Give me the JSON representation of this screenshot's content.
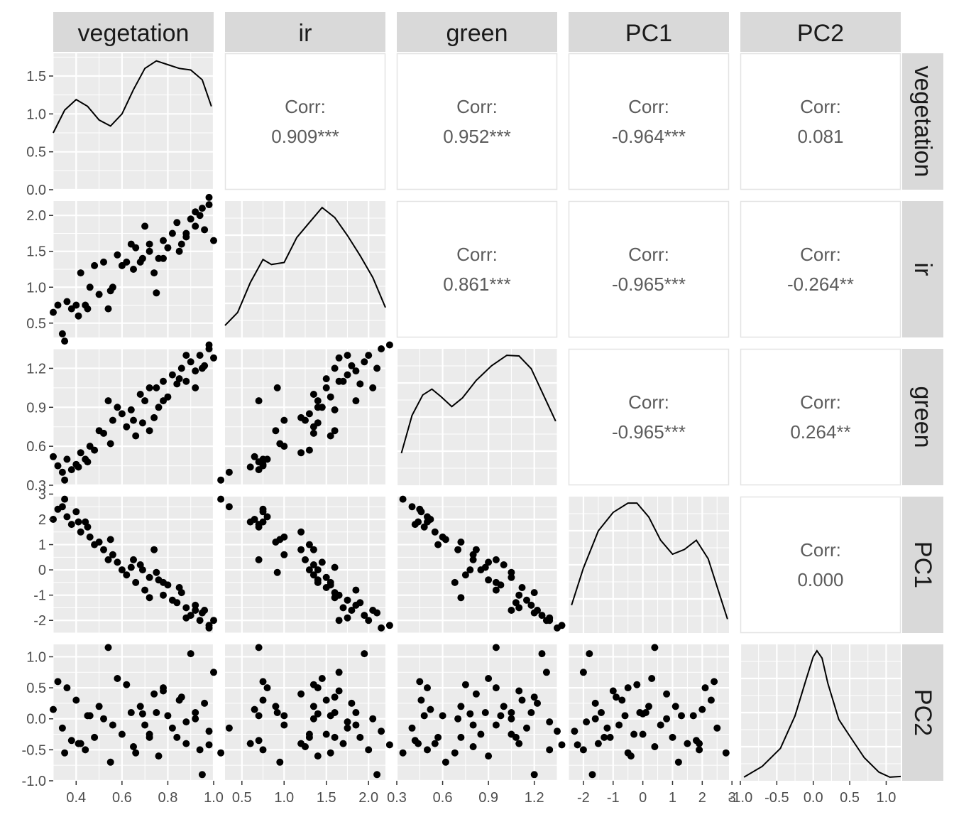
{
  "chart_data": {
    "type": "scatter",
    "variables": [
      "vegetation",
      "ir",
      "green",
      "PC1",
      "PC2"
    ],
    "axes": {
      "vegetation": {
        "lim": [
          0.3,
          1.0
        ],
        "ticks": [
          0.4,
          0.6,
          0.8,
          1.0
        ],
        "tick_labels": [
          "0.4",
          "0.6",
          "0.8",
          "1.0"
        ]
      },
      "ir": {
        "lim": [
          0.3,
          2.2
        ],
        "ticks": [
          0.5,
          1.0,
          1.5,
          2.0
        ],
        "tick_labels": [
          "0.5",
          "1.0",
          "1.5",
          "2.0"
        ]
      },
      "green": {
        "lim": [
          0.3,
          1.35
        ],
        "ticks": [
          0.3,
          0.6,
          0.9,
          1.2
        ],
        "tick_labels": [
          "0.3",
          "0.6",
          "0.9",
          "1.2"
        ]
      },
      "PC1": {
        "lim": [
          -2.5,
          2.9
        ],
        "ticks": [
          -2,
          -1,
          0,
          1,
          2,
          3
        ],
        "tick_labels": [
          "-2",
          "-1",
          "0",
          "1",
          "2",
          "3"
        ]
      },
      "PC2": {
        "lim": [
          -1.0,
          1.2
        ],
        "ticks": [
          -1.0,
          -0.5,
          0.0,
          0.5,
          1.0
        ],
        "tick_labels": [
          "-1.0",
          "-0.5",
          "0.0",
          "0.5",
          "1.0"
        ]
      }
    },
    "density_axis": {
      "lim": [
        0.0,
        1.8
      ],
      "ticks": [
        0.0,
        0.5,
        1.0,
        1.5
      ],
      "tick_labels": [
        "0.0",
        "0.5",
        "1.0",
        "1.5"
      ]
    },
    "densities": {
      "vegetation": [
        [
          0.3,
          0.75
        ],
        [
          0.35,
          1.05
        ],
        [
          0.4,
          1.19
        ],
        [
          0.45,
          1.1
        ],
        [
          0.5,
          0.92
        ],
        [
          0.55,
          0.84
        ],
        [
          0.6,
          1.0
        ],
        [
          0.65,
          1.32
        ],
        [
          0.7,
          1.6
        ],
        [
          0.75,
          1.7
        ],
        [
          0.8,
          1.65
        ],
        [
          0.85,
          1.6
        ],
        [
          0.9,
          1.58
        ],
        [
          0.95,
          1.45
        ],
        [
          0.99,
          1.1
        ]
      ],
      "ir": [
        [
          0.3,
          0.12
        ],
        [
          0.45,
          0.25
        ],
        [
          0.6,
          0.55
        ],
        [
          0.75,
          0.78
        ],
        [
          0.85,
          0.73
        ],
        [
          1.0,
          0.75
        ],
        [
          1.15,
          1.0
        ],
        [
          1.3,
          1.15
        ],
        [
          1.45,
          1.3
        ],
        [
          1.6,
          1.2
        ],
        [
          1.75,
          1.02
        ],
        [
          1.9,
          0.82
        ],
        [
          2.05,
          0.6
        ],
        [
          2.2,
          0.3
        ]
      ],
      "green": [
        [
          0.33,
          0.55
        ],
        [
          0.4,
          1.2
        ],
        [
          0.47,
          1.55
        ],
        [
          0.53,
          1.65
        ],
        [
          0.59,
          1.52
        ],
        [
          0.66,
          1.35
        ],
        [
          0.73,
          1.5
        ],
        [
          0.82,
          1.8
        ],
        [
          0.92,
          2.05
        ],
        [
          1.02,
          2.23
        ],
        [
          1.1,
          2.22
        ],
        [
          1.18,
          2.0
        ],
        [
          1.26,
          1.55
        ],
        [
          1.34,
          1.1
        ]
      ],
      "PC1": [
        [
          -2.4,
          0.06
        ],
        [
          -2.0,
          0.14
        ],
        [
          -1.5,
          0.22
        ],
        [
          -1.0,
          0.26
        ],
        [
          -0.5,
          0.28
        ],
        [
          -0.2,
          0.28
        ],
        [
          0.2,
          0.25
        ],
        [
          0.6,
          0.2
        ],
        [
          1.0,
          0.17
        ],
        [
          1.4,
          0.18
        ],
        [
          1.8,
          0.2
        ],
        [
          2.2,
          0.16
        ],
        [
          2.6,
          0.08
        ],
        [
          2.85,
          0.03
        ]
      ],
      "PC2": [
        [
          -0.95,
          0.05
        ],
        [
          -0.7,
          0.2
        ],
        [
          -0.45,
          0.45
        ],
        [
          -0.25,
          0.9
        ],
        [
          -0.1,
          1.4
        ],
        [
          0.0,
          1.72
        ],
        [
          0.05,
          1.8
        ],
        [
          0.12,
          1.7
        ],
        [
          0.2,
          1.35
        ],
        [
          0.35,
          0.85
        ],
        [
          0.5,
          0.62
        ],
        [
          0.7,
          0.32
        ],
        [
          0.9,
          0.12
        ],
        [
          1.05,
          0.05
        ],
        [
          1.2,
          0.06
        ]
      ]
    },
    "correlations": [
      {
        "row": "vegetation",
        "col": "ir",
        "label": "Corr:",
        "value": "0.909***"
      },
      {
        "row": "vegetation",
        "col": "green",
        "label": "Corr:",
        "value": "0.952***"
      },
      {
        "row": "vegetation",
        "col": "PC1",
        "label": "Corr:",
        "value": "-0.964***"
      },
      {
        "row": "vegetation",
        "col": "PC2",
        "label": "Corr:",
        "value": "0.081"
      },
      {
        "row": "ir",
        "col": "green",
        "label": "Corr:",
        "value": "0.861***"
      },
      {
        "row": "ir",
        "col": "PC1",
        "label": "Corr:",
        "value": "-0.965***"
      },
      {
        "row": "ir",
        "col": "PC2",
        "label": "Corr:",
        "value": "-0.264**"
      },
      {
        "row": "green",
        "col": "PC1",
        "label": "Corr:",
        "value": "-0.965***"
      },
      {
        "row": "green",
        "col": "PC2",
        "label": "Corr:",
        "value": "0.264**"
      },
      {
        "row": "PC1",
        "col": "PC2",
        "label": "Corr:",
        "value": "0.000"
      }
    ],
    "observations": {
      "vegetation": [
        0.3,
        0.32,
        0.34,
        0.36,
        0.38,
        0.4,
        0.42,
        0.44,
        0.46,
        0.48,
        0.5,
        0.52,
        0.54,
        0.56,
        0.58,
        0.6,
        0.62,
        0.64,
        0.66,
        0.68,
        0.7,
        0.72,
        0.74,
        0.76,
        0.78,
        0.8,
        0.82,
        0.84,
        0.86,
        0.88,
        0.9,
        0.92,
        0.94,
        0.96,
        0.98,
        1.0,
        0.35,
        0.45,
        0.55,
        0.65,
        0.75,
        0.85,
        0.95,
        0.72,
        0.78,
        0.88,
        0.92,
        0.98,
        0.41,
        0.69
      ],
      "ir": [
        0.65,
        0.75,
        0.35,
        0.8,
        0.7,
        0.75,
        1.2,
        0.75,
        1.0,
        1.3,
        0.9,
        1.35,
        0.7,
        1.0,
        1.45,
        1.3,
        1.35,
        1.6,
        1.55,
        1.35,
        1.85,
        1.5,
        1.2,
        1.4,
        1.65,
        1.55,
        1.75,
        1.9,
        1.6,
        1.7,
        1.95,
        1.85,
        2.0,
        1.8,
        2.15,
        1.65,
        0.25,
        0.7,
        0.95,
        1.25,
        0.92,
        1.5,
        2.1,
        1.6,
        1.4,
        1.75,
        2.05,
        2.25,
        0.6,
        1.4
      ],
      "green": [
        0.52,
        0.45,
        0.4,
        0.5,
        0.42,
        0.46,
        0.55,
        0.5,
        0.6,
        0.57,
        0.72,
        0.7,
        0.95,
        0.8,
        0.9,
        0.85,
        0.75,
        0.88,
        0.68,
        1.0,
        0.95,
        1.05,
        0.82,
        0.9,
        1.1,
        0.98,
        1.15,
        1.08,
        1.2,
        1.1,
        1.25,
        1.18,
        1.3,
        1.22,
        1.35,
        1.28,
        0.34,
        0.48,
        0.62,
        0.8,
        1.05,
        1.12,
        1.2,
        0.72,
        0.95,
        1.3,
        1.05,
        1.38,
        0.44,
        0.78
      ],
      "PC1": [
        2.0,
        2.4,
        2.5,
        2.1,
        1.8,
        2.3,
        1.5,
        1.9,
        1.3,
        1.0,
        1.1,
        0.8,
        0.4,
        0.6,
        0.3,
        0.0,
        -0.2,
        0.1,
        -0.5,
        0.2,
        -0.8,
        -0.3,
        0.8,
        -0.4,
        -1.0,
        -0.6,
        -1.2,
        -1.3,
        -0.9,
        -1.5,
        -1.8,
        -1.4,
        -2.0,
        -1.6,
        -2.3,
        -2.0,
        2.8,
        1.7,
        1.2,
        0.4,
        -0.1,
        -0.7,
        -1.7,
        -1.1,
        -0.5,
        -1.9,
        -1.6,
        -2.2,
        1.9,
        0.0
      ],
      "PC2": [
        0.15,
        0.6,
        -0.15,
        0.5,
        -0.35,
        0.3,
        -0.4,
        -0.5,
        0.05,
        -0.3,
        0.2,
        0.0,
        1.15,
        -0.1,
        0.65,
        -0.25,
        0.55,
        0.1,
        -0.55,
        0.2,
        -0.1,
        -0.25,
        0.4,
        -0.6,
        0.45,
        0.05,
        -0.15,
        -0.3,
        0.35,
        -0.4,
        1.05,
        0.1,
        -0.5,
        0.25,
        -0.2,
        0.75,
        -0.55,
        0.05,
        -0.7,
        -0.45,
        0.1,
        0.3,
        -0.9,
        -0.3,
        0.5,
        -0.05,
        0.0,
        -0.42,
        -0.4,
        0.08
      ]
    }
  }
}
